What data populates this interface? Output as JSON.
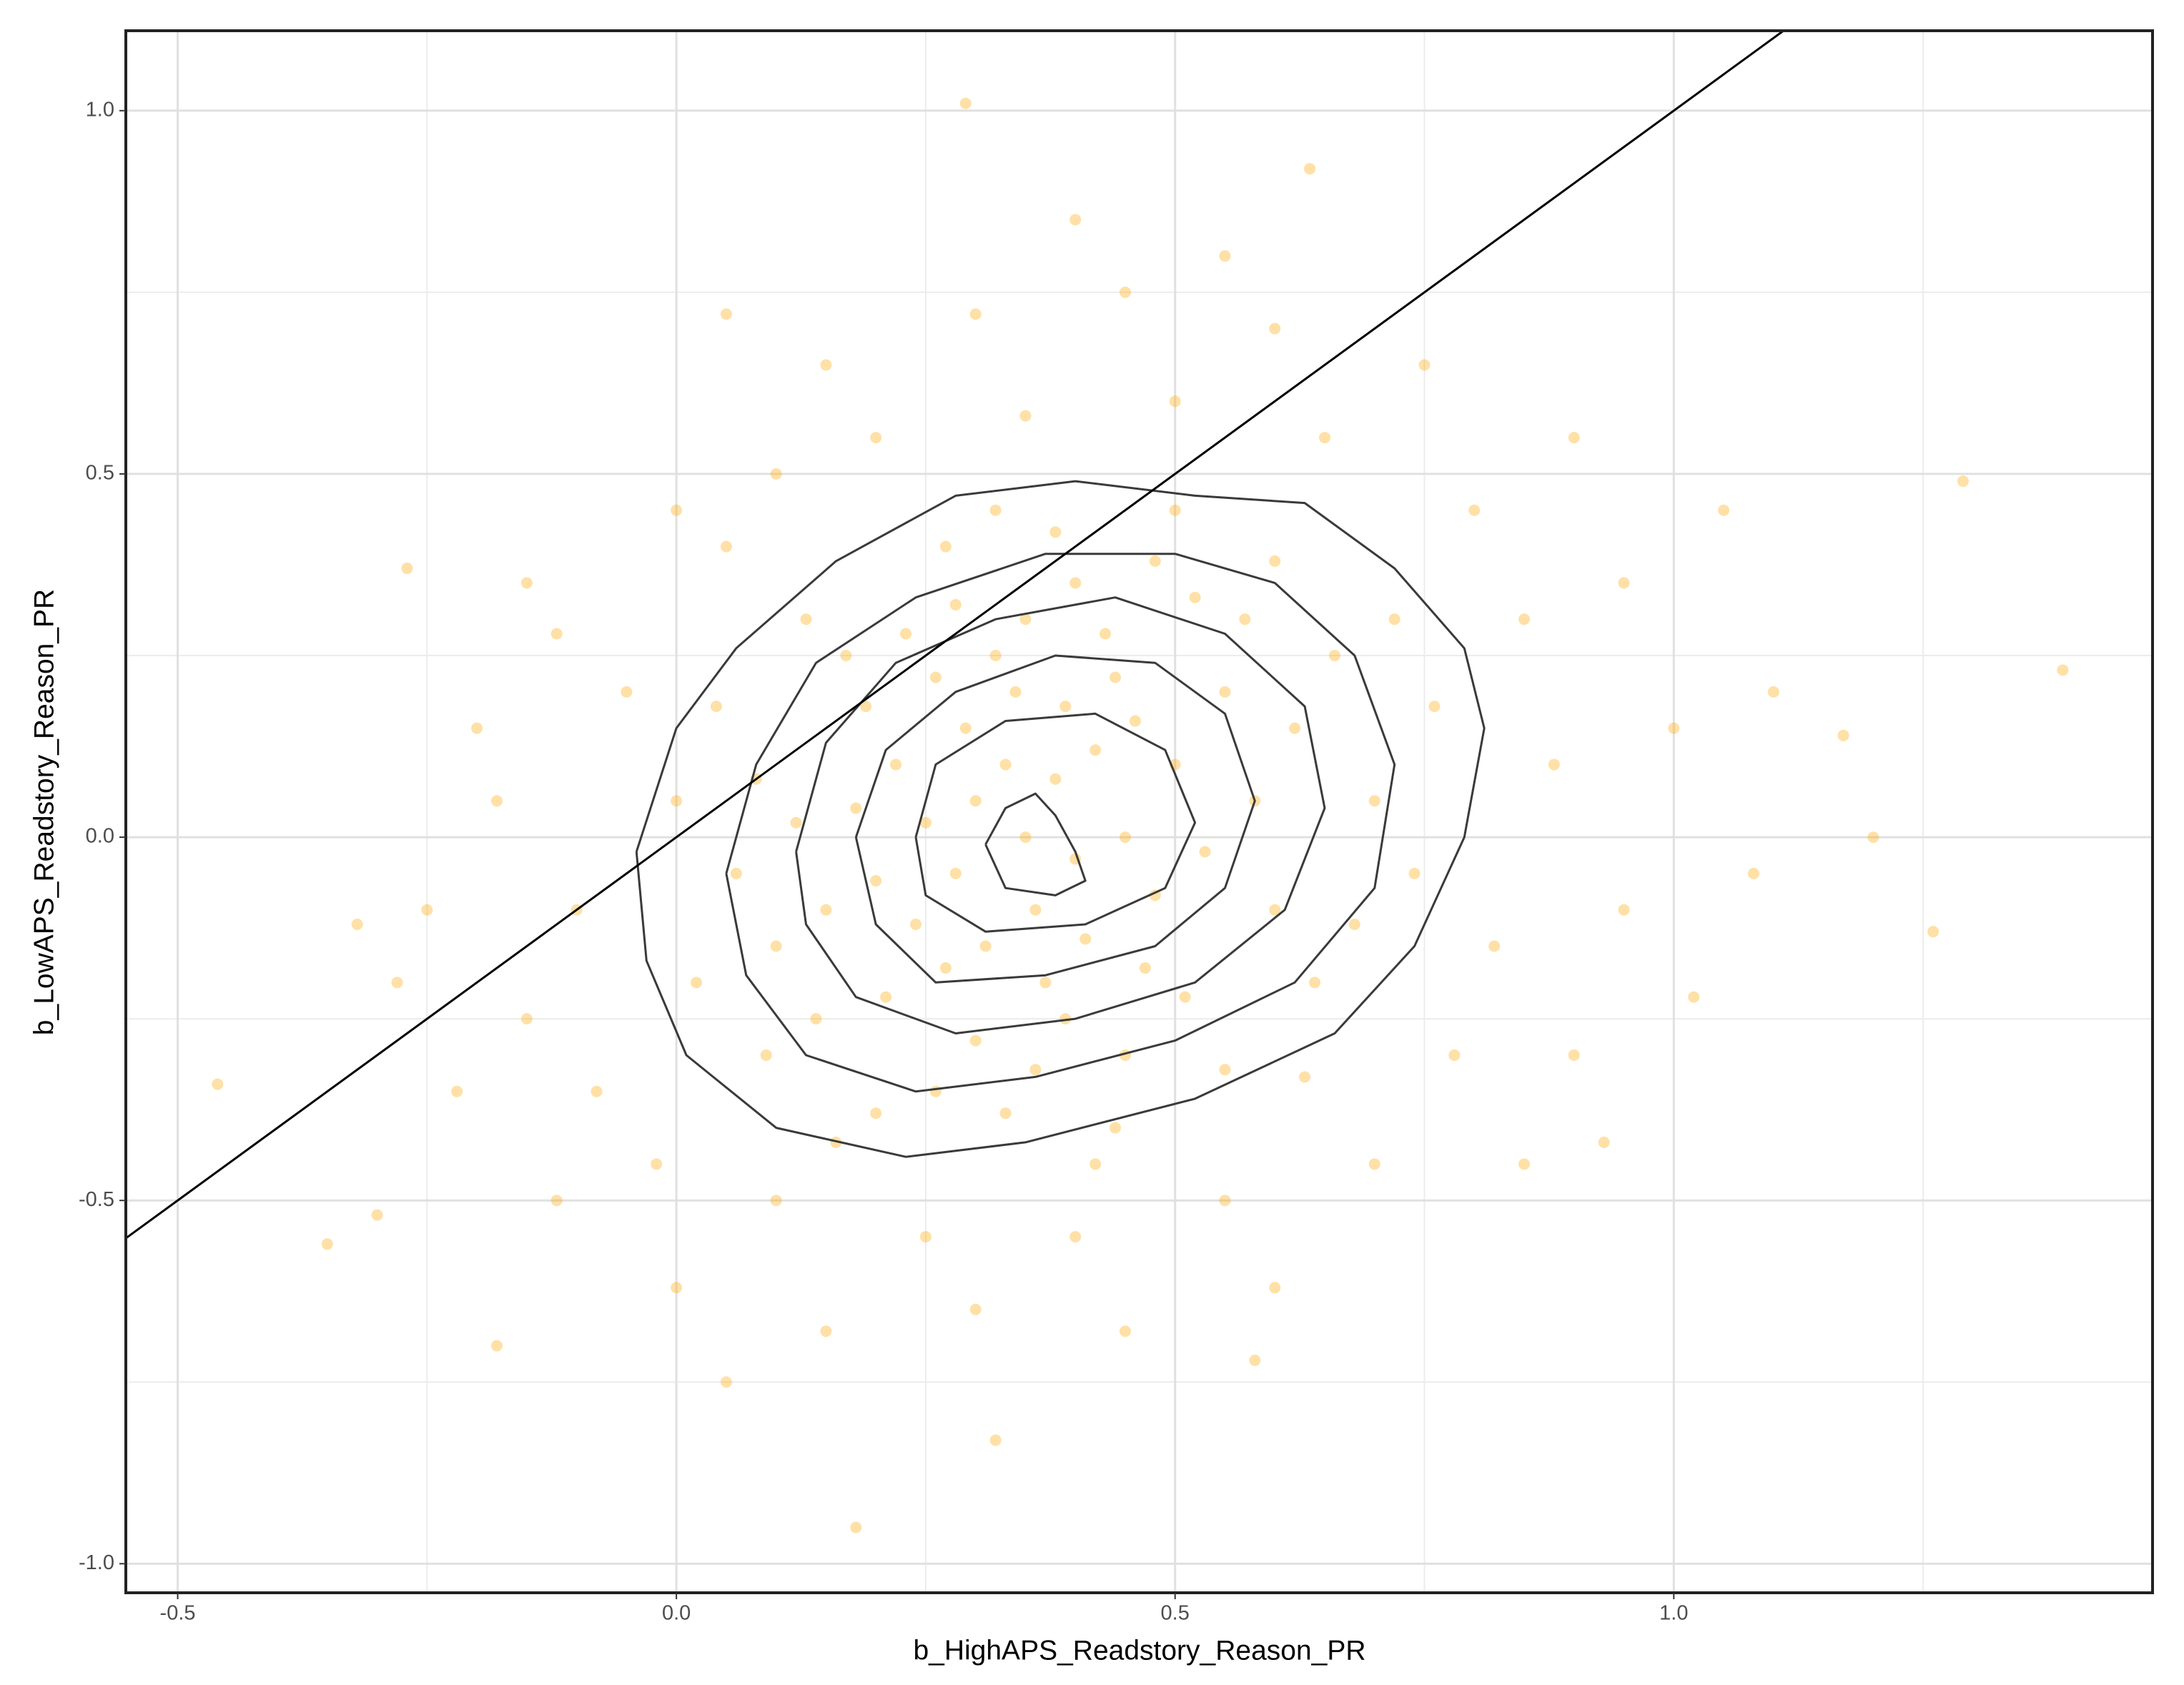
{
  "chart_data": {
    "type": "scatter",
    "x_label": "b_HighAPS_Readstory_Reason_PR",
    "y_label": "b_LowAPS_Readstory_Reason_PR",
    "xlim": [
      -0.552,
      1.48
    ],
    "ylim": [
      -1.04,
      1.11
    ],
    "xticks": [
      -0.5,
      {
        "value": 0,
        "label": "0.0"
      },
      0.5,
      {
        "value": 1,
        "label": "1.0"
      }
    ],
    "yticks": [
      {
        "value": -1,
        "label": "-1.0"
      },
      -0.5,
      {
        "value": 0,
        "label": "0.0"
      },
      0.5,
      {
        "value": 1,
        "label": "1.0"
      }
    ],
    "x_minor_ticks": [
      -0.25,
      0.25,
      0.75,
      1.25
    ],
    "y_minor_ticks": [
      -0.75,
      -0.25,
      0.25,
      0.75
    ],
    "grid": true,
    "points": {
      "color": "#ffa500",
      "opacity": 0.35,
      "x": [
        0.35,
        0.3,
        0.4,
        0.33,
        0.38,
        0.28,
        0.42,
        0.36,
        0.25,
        0.45,
        0.31,
        0.39,
        0.22,
        0.48,
        0.34,
        0.27,
        0.44,
        0.2,
        0.5,
        0.37,
        0.29,
        0.41,
        0.24,
        0.46,
        0.32,
        0.53,
        0.18,
        0.39,
        0.26,
        0.47,
        0.35,
        0.15,
        0.55,
        0.3,
        0.43,
        0.21,
        0.58,
        0.36,
        0.19,
        0.51,
        0.12,
        0.6,
        0.28,
        0.45,
        0.14,
        0.57,
        0.23,
        0.4,
        0.62,
        0.1,
        0.33,
        0.52,
        0.17,
        0.64,
        0.08,
        0.48,
        0.26,
        0.66,
        0.06,
        0.38,
        0.55,
        0.13,
        0.7,
        0.2,
        0.44,
        0.68,
        0.04,
        0.32,
        0.6,
        0.09,
        0.72,
        0.16,
        0.5,
        0.74,
        0.02,
        0.27,
        0.63,
        0.0,
        0.76,
        0.42,
        -0.05,
        -0.1,
        -0.08,
        0.05,
        0.1,
        0.2,
        0.35,
        0.5,
        0.65,
        0.8,
        0.85,
        0.88,
        0.82,
        0.78,
        0.7,
        0.55,
        0.4,
        0.25,
        0.1,
        -0.02,
        -0.15,
        -0.18,
        -0.12,
        0.0,
        0.15,
        0.3,
        0.45,
        0.6,
        0.75,
        0.9,
        0.95,
        1.0,
        0.95,
        0.9,
        0.85,
        0.6,
        0.45,
        0.3,
        0.15,
        0.0,
        -0.12,
        -0.22,
        -0.25,
        -0.2,
        -0.15,
        0.05,
        0.4,
        0.55,
        1.05,
        1.1,
        1.08,
        1.02,
        0.93,
        1.2,
        1.17,
        -0.28,
        -0.3,
        -0.18,
        0.05,
        0.58,
        0.29,
        0.635,
        1.39,
        1.29,
        -0.46,
        0.18,
        0.32,
        -0.32,
        -0.35,
        1.26,
        -0.27
      ],
      "y": [
        0.0,
        0.05,
        -0.03,
        0.1,
        0.08,
        -0.05,
        0.12,
        -0.1,
        0.02,
        0.0,
        -0.15,
        0.18,
        0.1,
        -0.08,
        0.2,
        -0.18,
        0.22,
        -0.06,
        0.1,
        -0.2,
        0.15,
        -0.14,
        -0.12,
        0.16,
        0.25,
        -0.02,
        0.04,
        -0.25,
        0.22,
        -0.18,
        0.3,
        -0.1,
        0.2,
        -0.28,
        0.28,
        -0.22,
        0.05,
        -0.32,
        0.18,
        -0.22,
        0.02,
        -0.1,
        0.32,
        -0.3,
        -0.25,
        0.3,
        0.28,
        0.35,
        0.15,
        -0.15,
        -0.38,
        0.33,
        0.25,
        -0.2,
        0.08,
        0.38,
        -0.35,
        0.25,
        -0.05,
        0.42,
        -0.32,
        0.3,
        0.05,
        -0.38,
        -0.4,
        -0.12,
        0.18,
        0.45,
        0.38,
        -0.3,
        0.3,
        -0.42,
        0.45,
        -0.05,
        -0.2,
        0.4,
        -0.33,
        0.05,
        0.18,
        -0.45,
        0.2,
        -0.1,
        -0.35,
        0.4,
        0.5,
        0.55,
        0.58,
        0.6,
        0.55,
        0.45,
        0.3,
        0.1,
        -0.15,
        -0.3,
        -0.45,
        -0.5,
        -0.55,
        -0.55,
        -0.5,
        -0.45,
        -0.25,
        0.05,
        0.28,
        0.45,
        0.65,
        0.72,
        0.75,
        0.7,
        0.65,
        0.55,
        0.35,
        0.15,
        -0.1,
        -0.3,
        -0.45,
        -0.62,
        -0.68,
        -0.65,
        -0.68,
        -0.62,
        -0.5,
        -0.35,
        -0.1,
        0.15,
        0.35,
        0.72,
        0.85,
        0.8,
        0.45,
        0.2,
        -0.05,
        -0.22,
        -0.42,
        0.0,
        0.14,
        -0.2,
        -0.52,
        -0.7,
        -0.75,
        -0.72,
        1.01,
        0.92,
        0.23,
        0.49,
        -0.34,
        -0.95,
        -0.83,
        -0.12,
        -0.56,
        -0.13,
        0.37
      ]
    },
    "contours": {
      "color": "#3a3a3a",
      "levels": [
        {
          "x": [
            -0.04,
            0.0,
            0.06,
            0.16,
            0.28,
            0.4,
            0.52,
            0.63,
            0.72,
            0.79,
            0.81,
            0.79,
            0.74,
            0.66,
            0.52,
            0.35,
            0.23,
            0.1,
            0.01,
            -0.03,
            -0.04
          ],
          "y": [
            -0.02,
            0.15,
            0.26,
            0.38,
            0.47,
            0.49,
            0.47,
            0.46,
            0.37,
            0.26,
            0.15,
            0.0,
            -0.15,
            -0.27,
            -0.36,
            -0.42,
            -0.44,
            -0.4,
            -0.3,
            -0.17,
            -0.02
          ]
        },
        {
          "x": [
            0.05,
            0.08,
            0.14,
            0.24,
            0.37,
            0.5,
            0.6,
            0.68,
            0.72,
            0.7,
            0.62,
            0.5,
            0.36,
            0.24,
            0.13,
            0.07,
            0.05
          ],
          "y": [
            -0.05,
            0.1,
            0.24,
            0.33,
            0.39,
            0.39,
            0.35,
            0.25,
            0.1,
            -0.07,
            -0.2,
            -0.28,
            -0.33,
            -0.35,
            -0.3,
            -0.19,
            -0.05
          ]
        },
        {
          "x": [
            0.12,
            0.15,
            0.22,
            0.32,
            0.44,
            0.55,
            0.63,
            0.65,
            0.61,
            0.52,
            0.4,
            0.28,
            0.18,
            0.13,
            0.12
          ],
          "y": [
            -0.02,
            0.13,
            0.24,
            0.3,
            0.33,
            0.28,
            0.18,
            0.04,
            -0.1,
            -0.2,
            -0.25,
            -0.27,
            -0.22,
            -0.12,
            -0.02
          ]
        },
        {
          "x": [
            0.18,
            0.21,
            0.28,
            0.38,
            0.48,
            0.55,
            0.58,
            0.55,
            0.48,
            0.37,
            0.26,
            0.2,
            0.18
          ],
          "y": [
            0.0,
            0.12,
            0.2,
            0.25,
            0.24,
            0.17,
            0.05,
            -0.07,
            -0.15,
            -0.19,
            -0.2,
            -0.12,
            0.0
          ]
        },
        {
          "x": [
            0.24,
            0.26,
            0.33,
            0.42,
            0.49,
            0.52,
            0.49,
            0.41,
            0.31,
            0.25,
            0.24
          ],
          "y": [
            0.0,
            0.1,
            0.16,
            0.17,
            0.12,
            0.02,
            -0.07,
            -0.12,
            -0.13,
            -0.08,
            0.0
          ]
        },
        {
          "x": [
            0.31,
            0.33,
            0.36,
            0.38,
            0.4,
            0.41,
            0.38,
            0.33,
            0.31
          ],
          "y": [
            -0.01,
            0.04,
            0.06,
            0.03,
            -0.02,
            -0.06,
            -0.08,
            -0.07,
            -0.01
          ]
        }
      ]
    },
    "reference_line": {
      "slope": 1,
      "intercept": 0,
      "color": "#000000"
    }
  }
}
